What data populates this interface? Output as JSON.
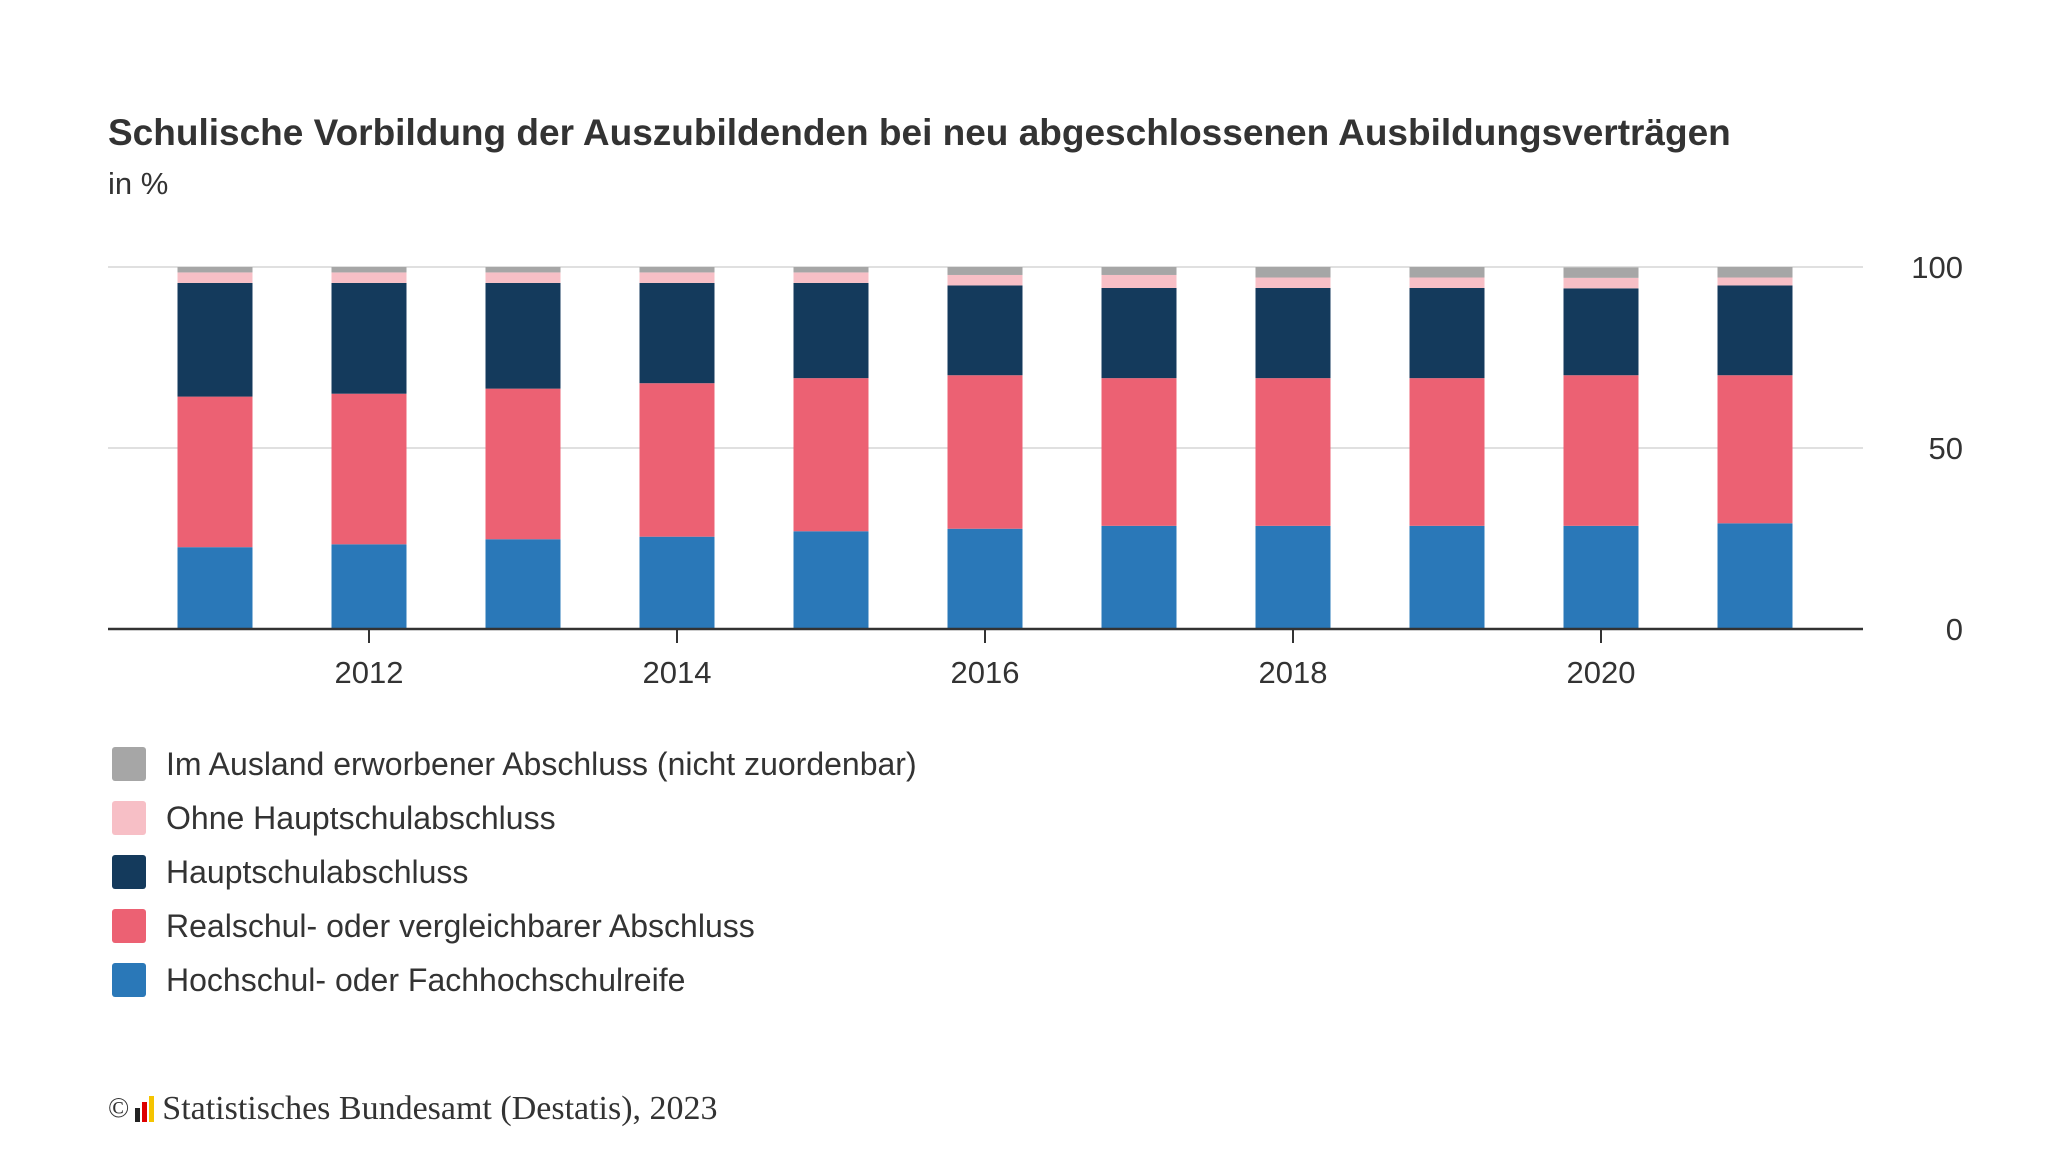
{
  "chart_data": {
    "type": "bar",
    "stacked": true,
    "title": "Schulische Vorbildung der Auszubildenden bei neu abgeschlossenen Ausbildungsverträgen",
    "subtitle": "in %",
    "categories": [
      2011,
      2012,
      2013,
      2014,
      2015,
      2016,
      2017,
      2018,
      2019,
      2020,
      2021
    ],
    "x_tick_labels": [
      "2012",
      "2014",
      "2016",
      "2018",
      "2020"
    ],
    "y_tick_labels": [
      "0",
      "50",
      "100"
    ],
    "ylim": [
      0,
      100
    ],
    "grid": true,
    "legend_placement": "bottom",
    "series": [
      {
        "name": "Hochschul- oder Fachhochschulreife",
        "color": "#2a78b8",
        "values": [
          22.6,
          23.4,
          24.8,
          25.5,
          27.0,
          27.7,
          28.5,
          28.5,
          28.5,
          28.5,
          29.2
        ]
      },
      {
        "name": "Realschul- oder vergleichbarer Abschluss",
        "color": "#ec6173",
        "values": [
          41.6,
          41.6,
          41.6,
          42.4,
          42.3,
          42.4,
          40.8,
          40.8,
          40.8,
          41.6,
          40.9
        ]
      },
      {
        "name": "Hauptschulabschluss",
        "color": "#143a5c",
        "values": [
          31.4,
          30.6,
          29.2,
          27.7,
          26.3,
          24.8,
          24.9,
          24.9,
          24.9,
          24.0,
          24.8
        ]
      },
      {
        "name": "Ohne Hauptschulabschluss",
        "color": "#f7bfc6",
        "values": [
          2.9,
          2.9,
          2.9,
          2.9,
          2.9,
          2.9,
          3.6,
          2.9,
          2.9,
          2.9,
          2.2
        ]
      },
      {
        "name": "Im Ausland erworbener Abschluss (nicht zuordenbar)",
        "color": "#a6a6a6",
        "values": [
          1.5,
          1.5,
          1.5,
          1.5,
          1.5,
          2.2,
          2.2,
          2.9,
          2.9,
          2.9,
          2.9
        ]
      }
    ]
  },
  "legend_order": [
    4,
    3,
    2,
    1,
    0
  ],
  "footer": {
    "copyright": "©",
    "text": "Statistisches Bundesamt (Destatis), 2023"
  }
}
